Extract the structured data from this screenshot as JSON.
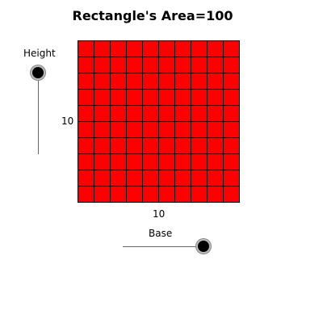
{
  "title": "Rectangle's Area=100",
  "height_slider": {
    "label": "Height",
    "value": 10
  },
  "base_slider": {
    "label": "Base",
    "value": 10
  },
  "rectangle": {
    "height_label": "10",
    "base_label": "10",
    "rows": 10,
    "columns": 10,
    "fill_color": "#ff0000",
    "grid_color": "#000000"
  }
}
